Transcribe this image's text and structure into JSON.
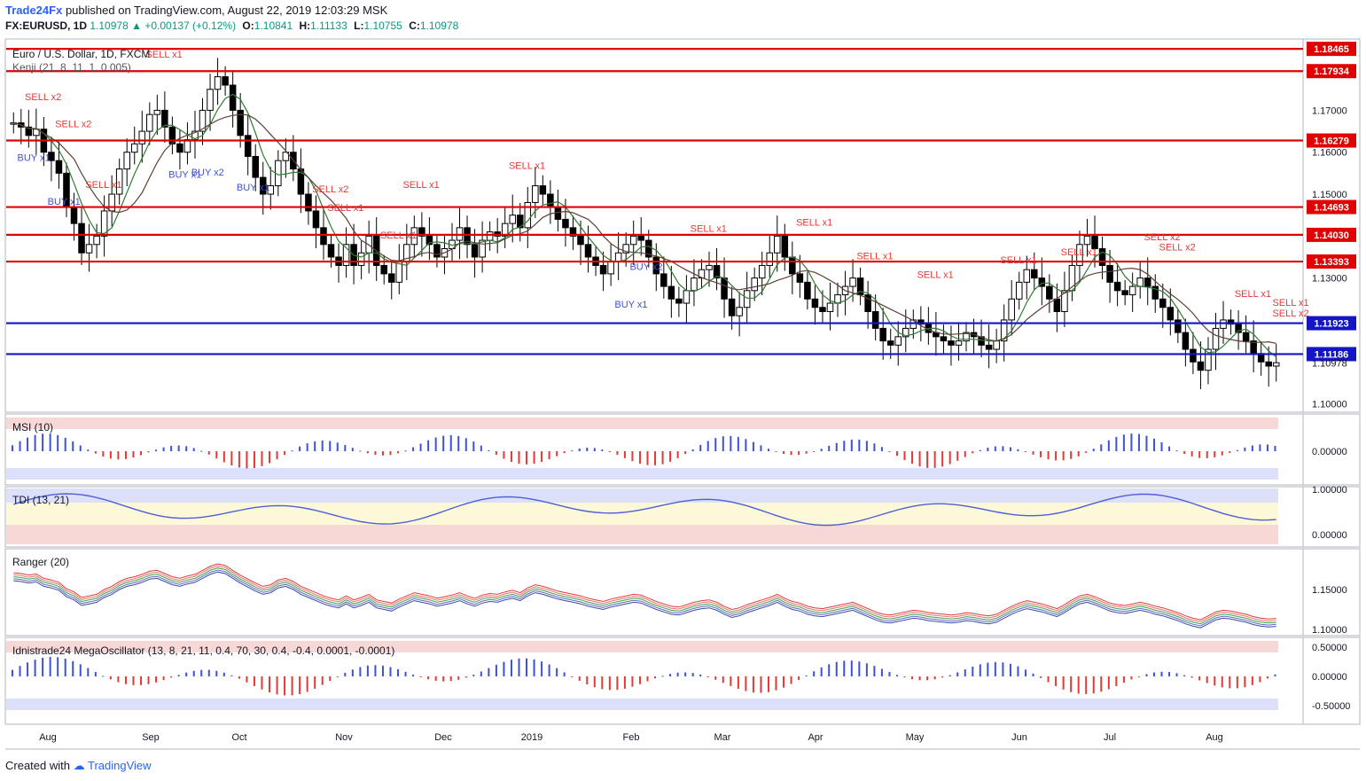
{
  "header": {
    "publisher": "Trade24Fx",
    "published_text": "published on TradingView.com, August 22, 2019 12:03:29 MSK",
    "symbol": "FX:EURUSD, 1D",
    "last": "1.10978",
    "change": "+0.00137 (+0.12%)",
    "o_label": "O:",
    "o": "1.10841",
    "h_label": "H:",
    "h": "1.11133",
    "l_label": "L:",
    "l": "1.10755",
    "c_label": "C:",
    "c": "1.10978"
  },
  "footer": {
    "created_with": "Created with",
    "brand": "TradingView"
  },
  "colors": {
    "up_text": "#089981",
    "red_line": "#e00000",
    "blue_line": "#1515c8",
    "sell": "#e53935",
    "buy": "#3f51d6",
    "candle": "#000000",
    "axis_label_bg": "#e00000"
  },
  "chart_data": [
    {
      "type": "candlestick",
      "title": "Euro / U.S. Dollar, 1D, FXCM",
      "indicator_label": "Kenji (21, 8, 11, 1, 0.005)",
      "x_axis_labels": [
        "Aug",
        "Sep",
        "Oct",
        "Nov",
        "Dec",
        "2019",
        "Feb",
        "Mar",
        "Apr",
        "May",
        "Jun",
        "Jul",
        "Aug"
      ],
      "y_ticks": [
        1.17,
        1.16,
        1.15,
        1.13,
        1.10978,
        1.1
      ],
      "ylim": [
        1.098,
        1.187
      ],
      "last_close": 1.10978,
      "horizontal_levels": [
        {
          "value": 1.18465,
          "color": "red"
        },
        {
          "value": 1.17934,
          "color": "red"
        },
        {
          "value": 1.16279,
          "color": "red"
        },
        {
          "value": 1.14693,
          "color": "red"
        },
        {
          "value": 1.1403,
          "color": "red"
        },
        {
          "value": 1.13393,
          "color": "red"
        },
        {
          "value": 1.11923,
          "color": "blue"
        },
        {
          "value": 1.11186,
          "color": "blue"
        }
      ],
      "closes": [
        1.167,
        1.166,
        1.164,
        1.1655,
        1.16,
        1.158,
        1.155,
        1.147,
        1.143,
        1.136,
        1.138,
        1.14,
        1.146,
        1.15,
        1.156,
        1.16,
        1.162,
        1.165,
        1.169,
        1.17,
        1.166,
        1.162,
        1.16,
        1.163,
        1.165,
        1.17,
        1.175,
        1.178,
        1.176,
        1.17,
        1.164,
        1.159,
        1.154,
        1.15,
        1.152,
        1.158,
        1.16,
        1.156,
        1.15,
        1.146,
        1.142,
        1.138,
        1.135,
        1.133,
        1.138,
        1.133,
        1.136,
        1.14,
        1.133,
        1.131,
        1.129,
        1.134,
        1.138,
        1.142,
        1.14,
        1.138,
        1.135,
        1.137,
        1.139,
        1.142,
        1.138,
        1.135,
        1.139,
        1.141,
        1.14,
        1.143,
        1.145,
        1.142,
        1.148,
        1.152,
        1.15,
        1.147,
        1.144,
        1.142,
        1.14,
        1.138,
        1.135,
        1.133,
        1.131,
        1.134,
        1.136,
        1.138,
        1.14,
        1.139,
        1.135,
        1.131,
        1.128,
        1.125,
        1.124,
        1.127,
        1.13,
        1.132,
        1.133,
        1.13,
        1.125,
        1.121,
        1.123,
        1.127,
        1.13,
        1.133,
        1.136,
        1.14,
        1.135,
        1.131,
        1.129,
        1.125,
        1.123,
        1.122,
        1.124,
        1.126,
        1.128,
        1.13,
        1.126,
        1.122,
        1.118,
        1.115,
        1.114,
        1.116,
        1.118,
        1.12,
        1.119,
        1.117,
        1.116,
        1.115,
        1.114,
        1.115,
        1.117,
        1.116,
        1.114,
        1.113,
        1.115,
        1.12,
        1.125,
        1.129,
        1.132,
        1.13,
        1.128,
        1.125,
        1.122,
        1.127,
        1.133,
        1.138,
        1.14,
        1.137,
        1.133,
        1.129,
        1.127,
        1.126,
        1.128,
        1.13,
        1.128,
        1.125,
        1.123,
        1.12,
        1.117,
        1.113,
        1.11,
        1.108,
        1.113,
        1.118,
        1.12,
        1.119,
        1.117,
        1.115,
        1.112,
        1.11,
        1.109,
        1.1098
      ],
      "markers": [
        {
          "label": "SELL x2",
          "side": "sell",
          "i": 2
        },
        {
          "label": "SELL x2",
          "side": "sell",
          "i": 6
        },
        {
          "label": "SELL x1",
          "side": "sell",
          "i": 10
        },
        {
          "label": "BUY x1",
          "side": "buy",
          "i": 1
        },
        {
          "label": "BUY x1",
          "side": "buy",
          "i": 5
        },
        {
          "label": "SELL x1",
          "side": "sell",
          "i": 18
        },
        {
          "label": "BUY x1",
          "side": "buy",
          "i": 21
        },
        {
          "label": "BUY x2",
          "side": "buy",
          "i": 24
        },
        {
          "label": "BUY x1",
          "side": "buy",
          "i": 30
        },
        {
          "label": "SELL x2",
          "side": "sell",
          "i": 40
        },
        {
          "label": "SELL x1",
          "side": "sell",
          "i": 42
        },
        {
          "label": "SELL x1",
          "side": "sell",
          "i": 52
        },
        {
          "label": "SELL x1",
          "side": "sell",
          "i": 49
        },
        {
          "label": "SELL x1",
          "side": "sell",
          "i": 66
        },
        {
          "label": "BUY x1",
          "side": "buy",
          "i": 80
        },
        {
          "label": "BUY x2",
          "side": "buy",
          "i": 82
        },
        {
          "label": "SELL x1",
          "side": "sell",
          "i": 90
        },
        {
          "label": "SELL x1",
          "side": "sell",
          "i": 104
        },
        {
          "label": "SELL x1",
          "side": "sell",
          "i": 112
        },
        {
          "label": "SELL x1",
          "side": "sell",
          "i": 120
        },
        {
          "label": "SELL x1",
          "side": "sell",
          "i": 131
        },
        {
          "label": "SELL x1",
          "side": "sell",
          "i": 139
        },
        {
          "label": "SELL x2",
          "side": "sell",
          "i": 150
        },
        {
          "label": "SELL x2",
          "side": "sell",
          "i": 152
        },
        {
          "label": "SELL x1",
          "side": "sell",
          "i": 162
        },
        {
          "label": "SELL x2",
          "side": "sell",
          "i": 171
        },
        {
          "label": "SELL x1",
          "side": "sell",
          "i": 177
        }
      ]
    },
    {
      "type": "bar",
      "title": "MSI (10)",
      "y_ticks": [
        0.0
      ],
      "y_tick_labels": [
        "0.00000"
      ]
    },
    {
      "type": "line",
      "title": "TDI (13, 21)",
      "y_ticks": [
        1.0,
        0.0
      ],
      "y_tick_labels": [
        "1.00000",
        "0.00000"
      ]
    },
    {
      "type": "line",
      "title": "Ranger (20)",
      "y_ticks": [
        1.15,
        1.1
      ],
      "y_tick_labels": [
        "1.15000",
        "1.10000"
      ]
    },
    {
      "type": "bar",
      "title": "Idnistrade24 MegaOscillator (13, 8, 21, 11, 0.4, 70, 30, 0.4, -0.4, 0.0001, -0.0001)",
      "y_ticks": [
        0.5,
        0.0,
        -0.5
      ],
      "y_tick_labels": [
        "0.50000",
        "0.00000",
        "-0.50000"
      ]
    }
  ]
}
